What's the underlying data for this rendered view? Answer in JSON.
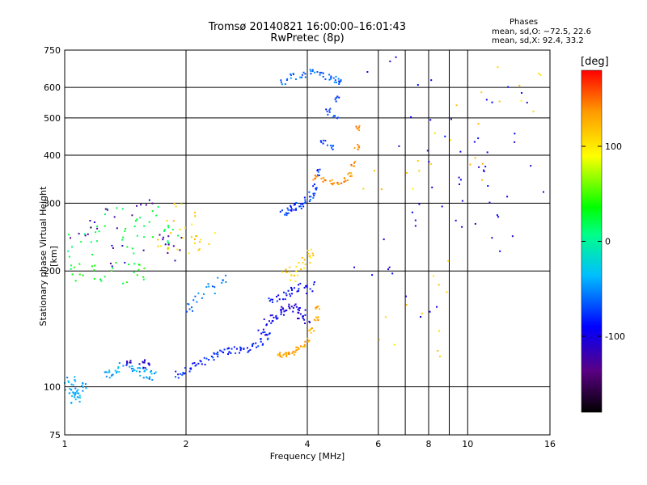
{
  "chart_data": {
    "type": "scatter",
    "title": "Tromsø 20140821 16:00:00–16:01:43",
    "subtitle": "RwPretec (8p)",
    "xlabel": "Frequency [MHz]",
    "ylabel": "Stationary phase Virtual Height [km]",
    "x_scale": "log",
    "y_scale": "log",
    "xlim": [
      1,
      16
    ],
    "ylim": [
      75,
      750
    ],
    "x_ticks": [
      1,
      2,
      4,
      6,
      8,
      10,
      16
    ],
    "x_tick_labels": [
      "1",
      "2",
      "4",
      "6",
      "8",
      "10",
      "16"
    ],
    "x_minor_ticks": [
      7,
      9
    ],
    "y_ticks": [
      75,
      100,
      200,
      300,
      400,
      500,
      600,
      750
    ],
    "y_tick_labels": [
      "75",
      "100",
      "200",
      "300",
      "400",
      "500",
      "600",
      "750"
    ],
    "grid": true,
    "colorbar": {
      "label": "[deg]",
      "range": [
        -180,
        180
      ],
      "ticks": [
        100,
        0,
        -100
      ],
      "tick_labels": [
        "100",
        "0",
        "-100"
      ],
      "colors": [
        "#000000",
        "#5a0082",
        "#0000ff",
        "#00bfff",
        "#00ff88",
        "#00ff00",
        "#ffff00",
        "#ff9900",
        "#ff0000"
      ]
    },
    "stats": {
      "header": "Phases",
      "o": "mean, sd,O: −72.5, 22.6",
      "x": "mean, sd,X:  92.4, 33.2"
    },
    "series": [
      {
        "x": [
          1.02,
          1.04,
          1.06,
          1.08,
          1.1,
          1.04,
          1.07
        ],
        "y": [
          100,
          97,
          95,
          98,
          101,
          103,
          92
        ],
        "phase": -40,
        "spread": 0.03
      },
      {
        "x": [
          1.28,
          1.32,
          1.38,
          1.45,
          1.5,
          1.55,
          1.6,
          1.65
        ],
        "y": [
          108,
          110,
          112,
          113,
          111,
          109,
          108,
          107
        ],
        "phase": -45,
        "spread": 0.03
      },
      {
        "x": [
          1.45,
          1.55,
          1.6
        ],
        "y": [
          115,
          116,
          114
        ],
        "phase": -110,
        "spread": 0.02
      },
      {
        "x": [
          1.92,
          2.0,
          2.1,
          2.2,
          2.3,
          2.4,
          2.5,
          2.6,
          2.7,
          2.8,
          2.95,
          3.05,
          3.15
        ],
        "y": [
          108,
          110,
          113,
          117,
          120,
          122,
          123,
          124,
          124,
          126,
          127,
          131,
          136
        ],
        "phase": -80,
        "spread": 0.025
      },
      {
        "x": [
          2.05,
          2.15,
          2.3,
          2.45
        ],
        "y": [
          160,
          170,
          180,
          190
        ],
        "phase": -60,
        "spread": 0.03
      },
      {
        "x": [
          3.1,
          3.2,
          3.3,
          3.4,
          3.5,
          3.6,
          3.7,
          3.8,
          3.9,
          4.0
        ],
        "y": [
          140,
          146,
          152,
          156,
          158,
          160,
          160,
          158,
          155,
          150
        ],
        "phase": -100,
        "spread": 0.03
      },
      {
        "x": [
          3.3,
          3.45,
          3.6,
          3.75,
          3.9,
          4.05
        ],
        "y": [
          168,
          172,
          175,
          178,
          180,
          182
        ],
        "phase": -90,
        "spread": 0.03
      },
      {
        "x": [
          3.4,
          3.5,
          3.6,
          3.7,
          3.8,
          3.9,
          4.0,
          4.1,
          4.2,
          4.25
        ],
        "y": [
          121,
          121,
          122,
          123,
          125,
          128,
          132,
          140,
          150,
          160
        ],
        "phase": 130,
        "spread": 0.015
      },
      {
        "x": [
          3.55,
          3.7,
          3.85,
          4.0,
          4.1
        ],
        "y": [
          200,
          190,
          205,
          215,
          225
        ],
        "phase": 110,
        "spread": 0.03
      },
      {
        "x": [
          3.5,
          3.6,
          3.7,
          3.8,
          3.9,
          4.0,
          4.1,
          4.2,
          4.3,
          4.4,
          4.5
        ],
        "y": [
          285,
          288,
          292,
          296,
          300,
          306,
          315,
          330,
          360,
          430,
          520
        ],
        "phase": -75,
        "spread": 0.02
      },
      {
        "x": [
          4.6,
          4.7,
          4.75,
          4.8
        ],
        "y": [
          420,
          500,
          560,
          620
        ],
        "phase": -70,
        "spread": 0.015
      },
      {
        "x": [
          4.2,
          4.4,
          4.6,
          4.8,
          5.0,
          5.1,
          5.2,
          5.3,
          5.35
        ],
        "y": [
          350,
          345,
          340,
          340,
          345,
          355,
          380,
          420,
          470
        ],
        "phase": 140,
        "spread": 0.015
      },
      {
        "x": [
          3.5,
          3.7,
          3.9,
          4.1,
          4.3,
          4.5,
          4.7
        ],
        "y": [
          620,
          640,
          650,
          655,
          650,
          640,
          630
        ],
        "phase": -60,
        "spread": 0.02
      },
      {
        "x": [
          1.1,
          1.2,
          1.3,
          1.4,
          1.5,
          1.6,
          1.7,
          1.8
        ],
        "y": [
          230,
          250,
          270,
          240,
          260,
          280,
          245,
          255
        ],
        "phase": 20,
        "spread": 0.08
      },
      {
        "x": [
          1.1,
          1.25,
          1.4,
          1.55,
          1.7,
          1.85
        ],
        "y": [
          250,
          270,
          220,
          290,
          240,
          230
        ],
        "phase": -120,
        "spread": 0.08
      },
      {
        "x": [
          1.8,
          1.9,
          2.0,
          2.1,
          2.2
        ],
        "y": [
          240,
          260,
          280,
          230,
          250
        ],
        "phase": 110,
        "spread": 0.07
      },
      {
        "x": [
          1.05,
          1.15,
          1.3,
          1.45,
          1.6
        ],
        "y": [
          198,
          195,
          200,
          197,
          199
        ],
        "phase": 30,
        "spread": 0.06
      },
      {
        "x": [
          6.2,
          6.8,
          7.2,
          8.1,
          8.6,
          9.3,
          10.2,
          11.5,
          12.8,
          14.0
        ],
        "y": [
          230,
          600,
          170,
          360,
          310,
          520,
          350,
          270,
          310,
          500
        ],
        "phase": -100,
        "spread": 0.2
      },
      {
        "x": [
          6.5,
          7.0,
          7.8,
          9.0,
          10.0,
          13.0
        ],
        "y": [
          320,
          140,
          180,
          380,
          480,
          560
        ],
        "phase": 110,
        "spread": 0.2
      }
    ]
  }
}
